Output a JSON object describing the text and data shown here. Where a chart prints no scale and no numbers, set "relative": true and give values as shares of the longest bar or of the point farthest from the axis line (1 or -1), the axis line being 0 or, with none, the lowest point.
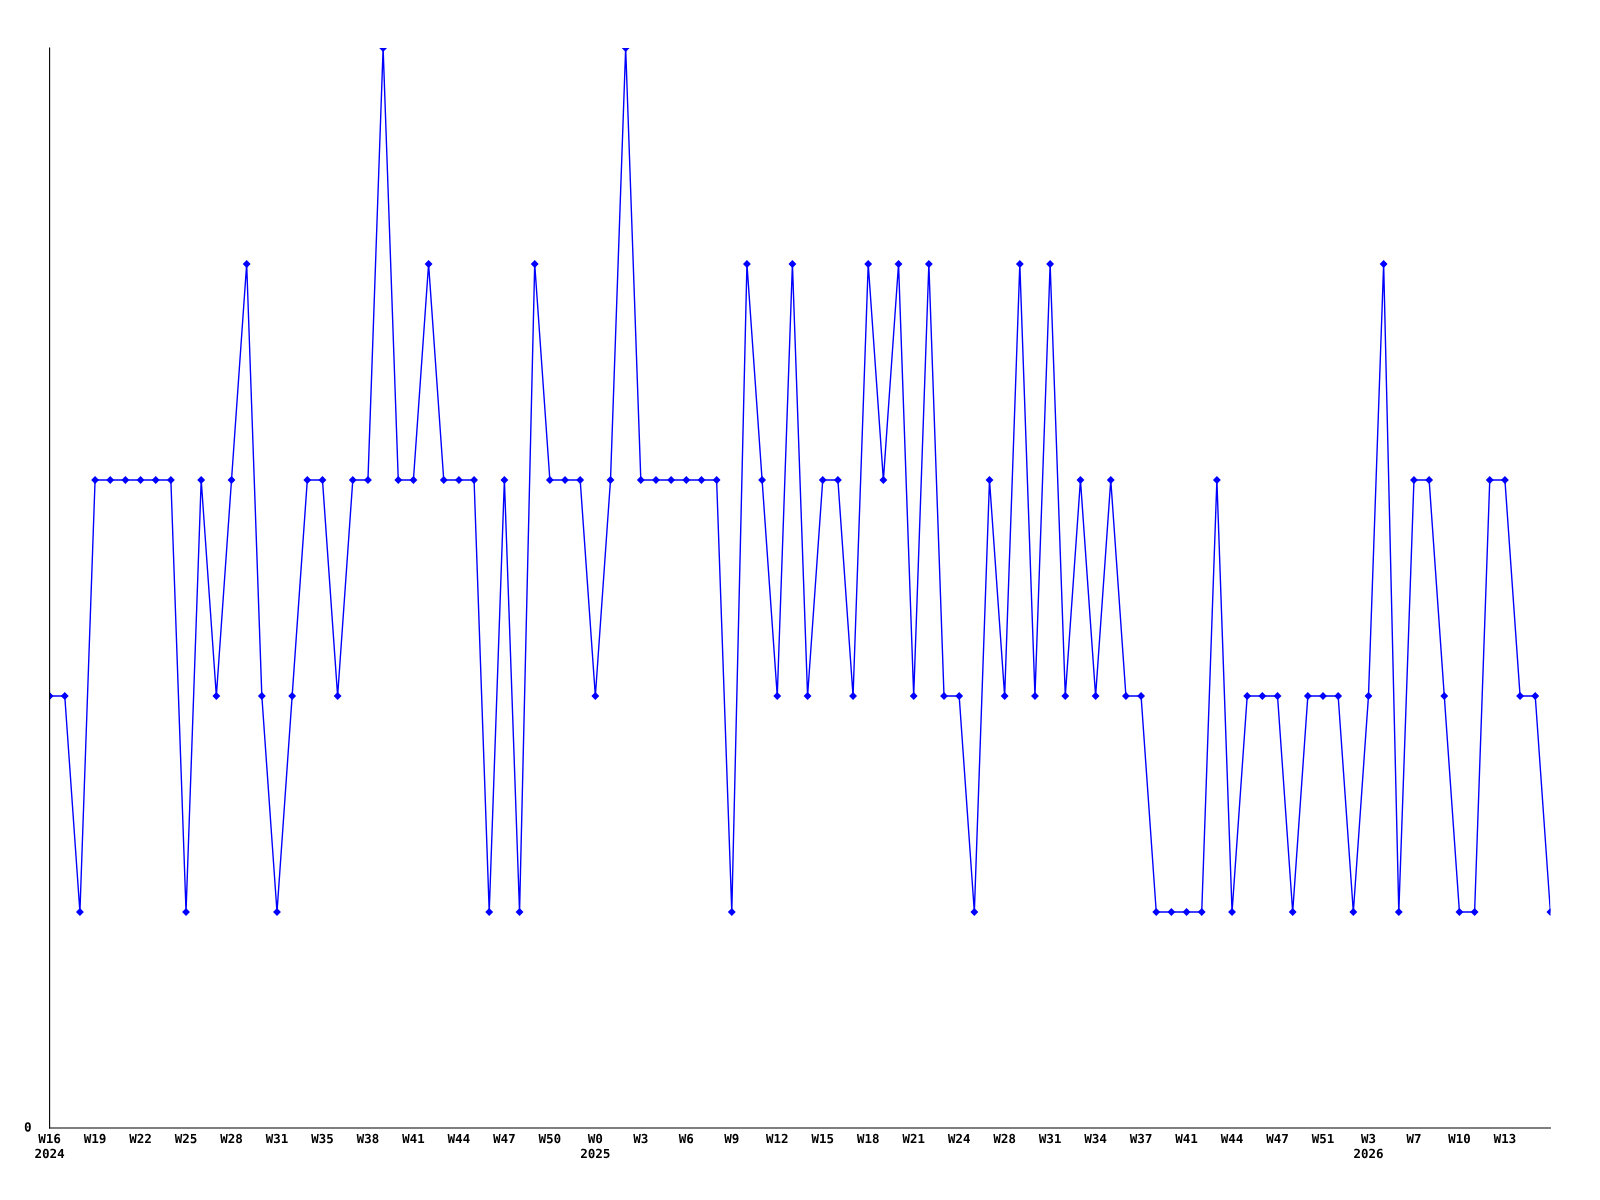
{
  "chart_data": {
    "type": "line",
    "relative": true,
    "marker": "diamond",
    "line_style": "solid",
    "grid": false,
    "legend": false,
    "categories": [
      "W16\n2024",
      null,
      null,
      "W19",
      null,
      null,
      "W22",
      null,
      null,
      "W25",
      null,
      null,
      "W28",
      null,
      null,
      "W31",
      null,
      null,
      "W35",
      null,
      null,
      "W38",
      null,
      null,
      "W41",
      null,
      null,
      "W44",
      null,
      null,
      "W47",
      null,
      null,
      "W50",
      null,
      null,
      "W0\n2025",
      null,
      null,
      "W3",
      null,
      null,
      "W6",
      null,
      null,
      "W9",
      null,
      null,
      "W12",
      null,
      null,
      "W15",
      null,
      null,
      "W18",
      null,
      null,
      "W21",
      null,
      null,
      "W24",
      null,
      null,
      "W28",
      null,
      null,
      "W31",
      null,
      null,
      "W34",
      null,
      null,
      "W37",
      null,
      null,
      "W41",
      null,
      null,
      "W44",
      null,
      null,
      "W47",
      null,
      null,
      "W51",
      null,
      null,
      "W3\n2026",
      null,
      null,
      "W7",
      null,
      null,
      "W10",
      null,
      null,
      "W13",
      null,
      null,
      null
    ],
    "series": [
      {
        "color": "#0000ff",
        "values": [
          0.4,
          0.4,
          0.2,
          0.6,
          0.6,
          0.6,
          0.6,
          0.6,
          0.6,
          0.2,
          0.6,
          0.4,
          0.6,
          0.8,
          0.4,
          0.2,
          0.4,
          0.6,
          0.6,
          0.4,
          0.6,
          0.6,
          1.0,
          0.6,
          0.6,
          0.8,
          0.6,
          0.6,
          0.6,
          0.2,
          0.6,
          0.2,
          0.8,
          0.6,
          0.6,
          0.6,
          0.4,
          0.6,
          1.0,
          0.6,
          0.6,
          0.6,
          0.6,
          0.6,
          0.6,
          0.2,
          0.8,
          0.6,
          0.4,
          0.8,
          0.4,
          0.6,
          0.6,
          0.4,
          0.8,
          0.6,
          0.8,
          0.4,
          0.8,
          0.4,
          0.4,
          0.2,
          0.6,
          0.4,
          0.8,
          0.4,
          0.8,
          0.4,
          0.6,
          0.4,
          0.6,
          0.4,
          0.4,
          0.2,
          0.2,
          0.2,
          0.2,
          0.6,
          0.2,
          0.4,
          0.4,
          0.4,
          0.2,
          0.4,
          0.4,
          0.4,
          0.2,
          0.4,
          0.8,
          0.2,
          0.6,
          0.6,
          0.4,
          0.2,
          0.2,
          0.6,
          0.6,
          0.4,
          0.4,
          0.2
        ]
      }
    ],
    "annotations": [
      "0"
    ]
  }
}
